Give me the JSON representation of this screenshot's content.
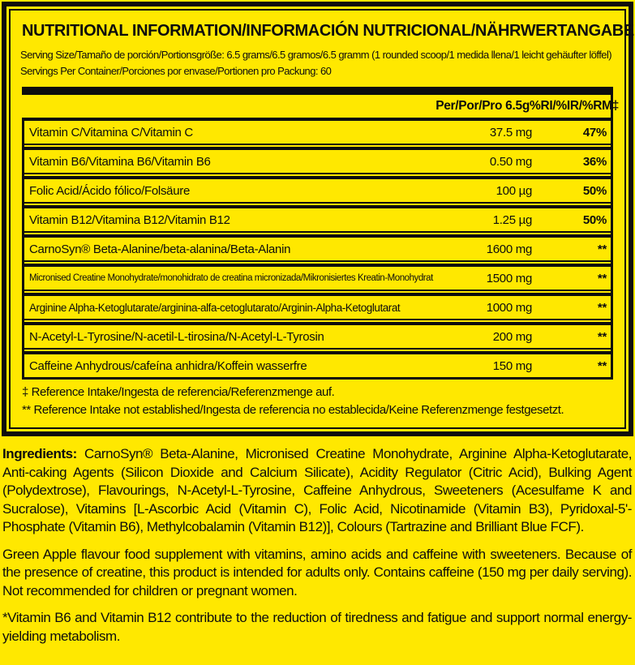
{
  "colors": {
    "background": "#ffe800",
    "ink": "#0d0d0d"
  },
  "label": {
    "title": "NUTRITIONAL INFORMATION/INFORMACIÓN NUTRICIONAL/NÄHRWERTANGABEN",
    "serving_size": "Serving Size/Tamaño de porción/Portionsgröße: 6.5 grams/6.5 gramos/6.5 gramm (1 rounded scoop/1 medida llena/1 leicht gehäufter löffel)",
    "servings_per_container": "Servings Per Container/Porciones por envase/Portionen pro Packung: 60",
    "columns": {
      "amount": "Per/Por/Pro 6.5g",
      "ri": "%RI/%IR/%RM‡"
    },
    "rows": [
      {
        "name": "Vitamin C/Vitamina C/Vitamin C",
        "amount": "37.5 mg",
        "ri": "47%"
      },
      {
        "name": "Vitamin B6/Vitamina B6/Vitamin B6",
        "amount": "0.50 mg",
        "ri": "36%"
      },
      {
        "name": "Folic Acid/Ácido fólico/Folsäure",
        "amount": "100 µg",
        "ri": "50%"
      },
      {
        "name": "Vitamin B12/Vitamina B12/Vitamin B12",
        "amount": "1.25 µg",
        "ri": "50%"
      },
      {
        "name": "CarnoSyn® Beta-Alanine/beta-alanina/Beta-Alanin",
        "amount": "1600 mg",
        "ri": "**"
      },
      {
        "name": "Micronised Creatine Monohydrate/monohidrato de creatina micronizada/Mikronisiertes Kreatin-Monohydrat",
        "amount": "1500 mg",
        "ri": "**"
      },
      {
        "name": "Arginine Alpha-Ketoglutarate/arginina-alfa-cetoglutarato/Arginin-Alpha-Ketoglutarat",
        "amount": "1000 mg",
        "ri": "**"
      },
      {
        "name": "N-Acetyl-L-Tyrosine/N-acetil-L-tirosina/N-Acetyl-L-Tyrosin",
        "amount": "200 mg",
        "ri": "**"
      },
      {
        "name": "Caffeine Anhydrous/cafeína anhidra/Koffein wasserfre",
        "amount": "150 mg",
        "ri": "**"
      }
    ],
    "footnotes": [
      "‡ Reference Intake/Ingesta de referencia/Referenzmenge auf.",
      "** Reference Intake not established/Ingesta de referencia no establecida/Keine Referenzmenge festgesetzt."
    ]
  },
  "ingredients": {
    "label": "Ingredients:",
    "text": " CarnoSyn® Beta-Alanine, Micronised Creatine Monohydrate, Arginine Alpha-Ketoglutarate, Anti-caking Agents (Silicon Dioxide and Calcium Silicate), Acidity Regulator (Citric Acid), Bulking Agent (Polydextrose), Flavourings, N-Acetyl-L-Tyrosine, Caffeine Anhydrous, Sweeteners (Acesulfame K and Sucralose), Vitamins [L-Ascorbic Acid (Vitamin C), Folic Acid, Nicotinamide (Vitamin B3), Pyridoxal-5'-Phosphate (Vitamin B6), Methylcobalamin (Vitamin B12)], Colours (Tartrazine and Brilliant Blue FCF)."
  },
  "notes": {
    "flavour": "Green Apple flavour food supplement with vitamins, amino acids and caffeine with sweeteners. Because of the presence of creatine, this product is intended for adults only. Contains caffeine (150 mg per daily serving). Not recommended for children or pregnant women.",
    "vitamins": "*Vitamin B6 and Vitamin B12 contribute to the reduction of tiredness and fatigue and support normal energy-yielding metabolism."
  }
}
